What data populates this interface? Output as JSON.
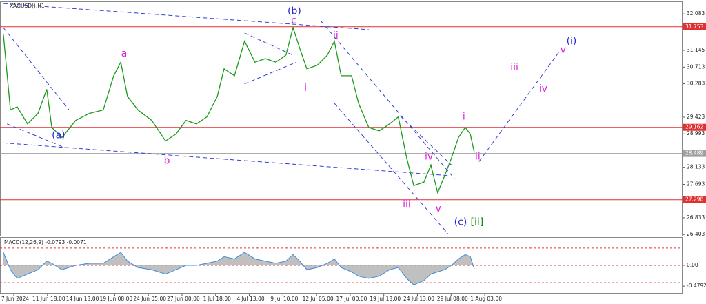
{
  "chart_data": [
    {
      "type": "line",
      "title": "XAGUSD(),H1",
      "x": [
        -0.31,
        -0.1,
        0.1,
        0.41,
        0.72,
        0.98,
        1.13,
        1.43,
        1.84,
        2.25,
        2.66,
        2.97,
        3.18,
        3.38,
        3.69,
        4.1,
        4.51,
        4.82,
        5.12,
        5.43,
        5.74,
        6.05,
        6.25,
        6.56,
        6.86,
        7.17,
        7.48,
        7.79,
        8.09,
        8.3,
        8.5,
        8.71,
        9.02,
        9.32,
        9.53,
        9.73,
        10.04,
        10.25,
        10.55,
        10.86,
        11.17,
        11.43,
        11.68,
        11.89,
        12.19,
        12.4,
        12.6,
        12.81,
        13.01,
        13.22,
        13.42,
        13.57,
        13.69
      ],
      "series": [
        {
          "color": "#1a9a1a",
          "values": [
            31.55,
            29.61,
            29.69,
            29.25,
            29.52,
            30.14,
            29.16,
            28.9,
            29.34,
            29.52,
            29.61,
            30.49,
            30.84,
            29.96,
            29.61,
            29.34,
            28.81,
            28.99,
            29.34,
            29.25,
            29.43,
            29.96,
            30.67,
            30.49,
            31.38,
            30.84,
            30.93,
            30.84,
            31.02,
            31.73,
            31.2,
            30.67,
            30.76,
            31.02,
            31.38,
            30.49,
            30.49,
            29.78,
            29.16,
            29.07,
            29.25,
            29.43,
            28.37,
            27.66,
            27.75,
            28.19,
            27.48,
            27.92,
            28.37,
            28.9,
            29.16,
            28.99,
            28.51
          ]
        }
      ],
      "xlim": [
        -0.41,
        19.88
      ],
      "ylim": [
        26.37,
        32.37
      ],
      "yticks": [
        32.083,
        31.145,
        30.713,
        30.283,
        29.423,
        28.993,
        28.133,
        27.693,
        26.833,
        26.403
      ],
      "xticks": [
        {
          "value": 0,
          "label": "7 Jun 2024"
        },
        {
          "value": 1,
          "label": "11 Jun 18:00"
        },
        {
          "value": 2,
          "label": "14 Jun 13:00"
        },
        {
          "value": 3,
          "label": "19 Jun 08:00"
        },
        {
          "value": 4,
          "label": "24 Jun 05:00"
        },
        {
          "value": 5,
          "label": "27 Jun 00:00"
        },
        {
          "value": 6,
          "label": "1 Jul 18:00"
        },
        {
          "value": 7,
          "label": "4 Jul 13:00"
        },
        {
          "value": 8,
          "label": "9 Jul 10:00"
        },
        {
          "value": 9,
          "label": "12 Jul 05:00"
        },
        {
          "value": 10,
          "label": "17 Jul 00:00"
        },
        {
          "value": 11,
          "label": "19 Jul 18:00"
        },
        {
          "value": 12,
          "label": "24 Jul 13:00"
        },
        {
          "value": 13,
          "label": "29 Jul 08:00"
        },
        {
          "value": 14,
          "label": "1 Aug 03:00"
        }
      ],
      "hlines": [
        {
          "value": 31.753,
          "color": "#e03030"
        },
        {
          "value": 29.162,
          "color": "#e03030"
        },
        {
          "value": 27.298,
          "color": "#e03030"
        },
        {
          "value": 28.489,
          "color": "#a0a0a0"
        }
      ],
      "trendlines": [
        {
          "x": [
            -0.31,
            10.55
          ],
          "y": [
            32.35,
            31.68
          ]
        },
        {
          "x": [
            -0.31,
            12.91
          ],
          "y": [
            28.76,
            27.92
          ]
        },
        {
          "x": [
            -0.31,
            1.64
          ],
          "y": [
            31.73,
            29.61
          ]
        },
        {
          "x": [
            -0.2,
            1.54
          ],
          "y": [
            29.25,
            28.63
          ]
        },
        {
          "x": [
            6.86,
            8.3
          ],
          "y": [
            31.59,
            31.02
          ]
        },
        {
          "x": [
            6.86,
            8.4
          ],
          "y": [
            30.28,
            30.84
          ]
        },
        {
          "x": [
            9.12,
            13.11
          ],
          "y": [
            31.91,
            27.83
          ]
        },
        {
          "x": [
            9.53,
            12.91
          ],
          "y": [
            29.78,
            26.42
          ]
        },
        {
          "x": [
            11.48,
            13.01
          ],
          "y": [
            29.46,
            28.19
          ]
        },
        {
          "x": [
            13.83,
            16.29
          ],
          "y": [
            28.28,
            31.2
          ]
        }
      ],
      "annotations": [
        {
          "text": "(b)",
          "x": 8.34,
          "y": 32.15,
          "color": "#2a2ad0"
        },
        {
          "text": "c",
          "x": 8.32,
          "y": 31.91,
          "color": "#e020e0"
        },
        {
          "text": "ii",
          "x": 9.57,
          "y": 31.52,
          "color": "#e020e0"
        },
        {
          "text": "a",
          "x": 3.28,
          "y": 31.06,
          "color": "#e020e0"
        },
        {
          "text": "i",
          "x": 8.67,
          "y": 30.17,
          "color": "#e020e0"
        },
        {
          "text": "(a)",
          "x": 1.33,
          "y": 28.95,
          "color": "#2a2ad0"
        },
        {
          "text": "b",
          "x": 4.55,
          "y": 28.3,
          "color": "#e020e0"
        },
        {
          "text": "iii",
          "x": 11.68,
          "y": 27.18,
          "color": "#e020e0"
        },
        {
          "text": "v",
          "x": 12.62,
          "y": 27.06,
          "color": "#e020e0"
        },
        {
          "text": "iv",
          "x": 12.34,
          "y": 28.4,
          "color": "#e020e0"
        },
        {
          "text": "i",
          "x": 13.38,
          "y": 29.43,
          "color": "#e020e0"
        },
        {
          "text": "ii",
          "x": 13.79,
          "y": 28.4,
          "color": "#e020e0"
        },
        {
          "text": "(c)",
          "x": 13.28,
          "y": 26.72,
          "color": "#2a2ad0"
        },
        {
          "text": "[ii]",
          "x": 13.77,
          "y": 26.72,
          "color": "#1a8a1a"
        },
        {
          "text": "v",
          "x": 16.33,
          "y": 31.15,
          "color": "#e020e0"
        },
        {
          "text": "(i)",
          "x": 16.58,
          "y": 31.38,
          "color": "#2a2ad0"
        },
        {
          "text": "iii",
          "x": 14.88,
          "y": 30.7,
          "color": "#e020e0"
        },
        {
          "text": "iv",
          "x": 15.74,
          "y": 30.15,
          "color": "#e020e0"
        }
      ]
    },
    {
      "type": "area",
      "title": "MACD(12,26,9) -0.0793 -0.0071",
      "x": [
        -0.31,
        -0.1,
        0.1,
        0.41,
        0.72,
        0.98,
        1.13,
        1.43,
        1.84,
        2.25,
        2.66,
        2.97,
        3.18,
        3.38,
        3.69,
        4.1,
        4.51,
        4.82,
        5.12,
        5.43,
        5.74,
        6.05,
        6.25,
        6.56,
        6.86,
        7.17,
        7.48,
        7.79,
        8.09,
        8.3,
        8.5,
        8.71,
        9.02,
        9.32,
        9.53,
        9.73,
        10.04,
        10.25,
        10.55,
        10.86,
        11.17,
        11.43,
        11.68,
        11.89,
        12.19,
        12.4,
        12.6,
        12.81,
        13.01,
        13.22,
        13.42,
        13.57,
        13.69
      ],
      "series": [
        {
          "color": "#3a8ae0",
          "values": [
            0.3,
            -0.1,
            -0.3,
            -0.2,
            -0.1,
            0.1,
            0.05,
            -0.1,
            0,
            0.05,
            0.05,
            0.2,
            0.3,
            0.1,
            -0.05,
            -0.1,
            -0.2,
            -0.1,
            0,
            0,
            0.05,
            0.1,
            0.2,
            0.15,
            0.3,
            0.15,
            0.1,
            0.05,
            0.1,
            0.25,
            0.1,
            -0.1,
            -0.05,
            0.05,
            0.15,
            -0.05,
            -0.15,
            -0.25,
            -0.3,
            -0.25,
            -0.1,
            -0.05,
            -0.3,
            -0.45,
            -0.35,
            -0.2,
            -0.15,
            -0.1,
            0,
            0.15,
            0.25,
            0.2,
            -0.08
          ]
        }
      ],
      "xlim": [
        -0.41,
        19.88
      ],
      "ylim": [
        -0.62,
        0.62
      ],
      "yticks": [
        {
          "value": 0,
          "label": "0.00"
        },
        -0.4792
      ],
      "levels": [
        0.4,
        0,
        -0.4
      ],
      "level_color": "#e03030"
    }
  ]
}
